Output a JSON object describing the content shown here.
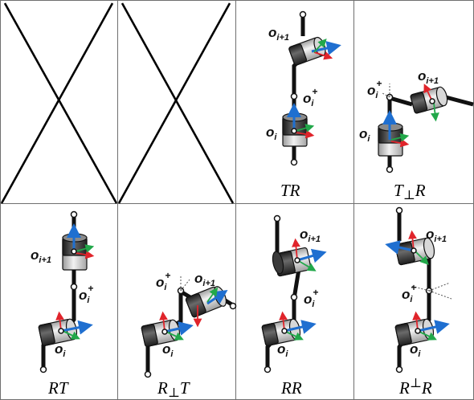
{
  "captions": {
    "tr": "TR",
    "t_perp_r": "T⊥R",
    "rt": "RT",
    "r_perp_t": "R⊥T",
    "rr": "RR",
    "r_sup_perp_r": "R⊥R"
  },
  "frame_labels": {
    "o_i": "oi",
    "o_i1": "oi+1",
    "o_iplus": "oi+"
  },
  "colors": {
    "axis_blue": "#1f6fd0",
    "axis_red": "#e0242b",
    "axis_green": "#22a84a",
    "joint_dark": "#2a2a2a",
    "joint_light": "#c9c9c9"
  }
}
